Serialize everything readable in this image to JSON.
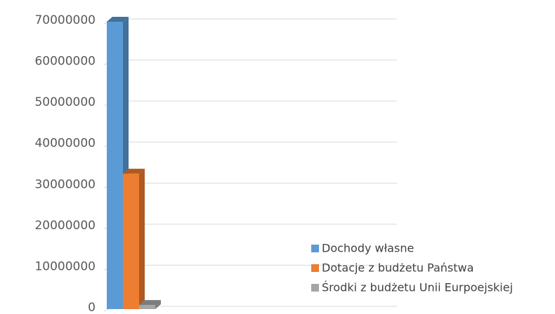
{
  "chart_data": {
    "type": "bar3d",
    "categories": [
      null
    ],
    "series": [
      {
        "name": "Dochody własne",
        "color": "#5b9bd5",
        "side": "#41719c",
        "values": [
          70000000
        ]
      },
      {
        "name": "Dotacje z budżetu Państwa",
        "color": "#ed7d31",
        "side": "#ae5a21",
        "values": [
          33000000
        ]
      },
      {
        "name": "Środki z budżetu Unii Eurpoejskiej",
        "color": "#a5a5a5",
        "side": "#7c7c7c",
        "values": [
          1000000
        ]
      }
    ],
    "ylim": [
      0,
      70000000
    ],
    "yticks": [
      0,
      10000000,
      20000000,
      30000000,
      40000000,
      50000000,
      60000000,
      70000000
    ],
    "grid": true,
    "legend": "bottom-right"
  }
}
